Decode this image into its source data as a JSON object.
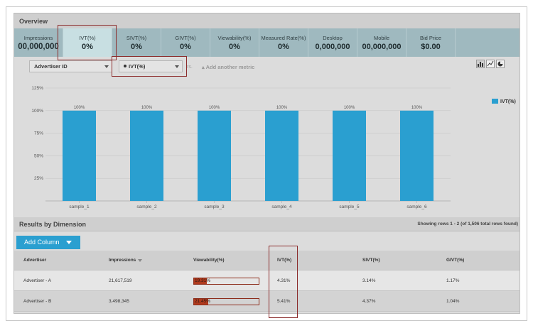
{
  "overview": {
    "title": "Overview"
  },
  "metrics": [
    {
      "label": "Impressions",
      "value": "00,000,000"
    },
    {
      "label": "IVT(%)",
      "value": "0%"
    },
    {
      "label": "SIVT(%)",
      "value": "0%"
    },
    {
      "label": "GIVT(%)",
      "value": "0%"
    },
    {
      "label": "Viewability(%)",
      "value": "0%"
    },
    {
      "label": "Measured Rate(%)",
      "value": "0%"
    },
    {
      "label": "Desktop",
      "value": "0,000,000"
    },
    {
      "label": "Mobile",
      "value": "00,000,000"
    },
    {
      "label": "Bid Price",
      "value": "$0.00"
    }
  ],
  "controls": {
    "dimension": "Advertiser ID",
    "metric": "IVT(%)",
    "add_metric": "Add another metric",
    "ghost_text": "rs.",
    "chart_type_icons": [
      "bar-chart-icon",
      "line-chart-icon",
      "pie-chart-icon"
    ]
  },
  "chart_data": {
    "type": "bar",
    "categories": [
      "sample_1",
      "sample_2",
      "sample_3",
      "sample_4",
      "sample_5",
      "sample_6"
    ],
    "series": [
      {
        "name": "IVT(%)",
        "values": [
          100,
          100,
          100,
          100,
          100,
          100
        ]
      }
    ],
    "data_labels": [
      "100%",
      "100%",
      "100%",
      "100%",
      "100%",
      "100%"
    ],
    "ylim": [
      0,
      125
    ],
    "yticks": [
      "25%",
      "50%",
      "75%",
      "100%",
      "125%"
    ],
    "ytick_values": [
      25,
      50,
      75,
      100,
      125
    ],
    "legend": "top-right",
    "grid": true,
    "color": "#2a9fd0"
  },
  "results": {
    "title": "Results by Dimension",
    "info": "Showing rows 1 - 2 (of 1,506 total rows found)",
    "add_column": "Add Column",
    "headers": [
      "Advertiser",
      "Impressions",
      "Viewability(%)",
      "IVT(%)",
      "SIVT(%)",
      "GIVT(%)"
    ],
    "rows": [
      {
        "advertiser": "Advertiser - A",
        "impressions": "21,617,519",
        "viewability": "19.31%",
        "viewability_value": 19.31,
        "ivt": "4.31%",
        "sivt": "3.14%",
        "givt": "1.17%"
      },
      {
        "advertiser": "Advertiser - B",
        "impressions": "3,498,345",
        "viewability": "21.45%",
        "viewability_value": 21.45,
        "ivt": "5.41%",
        "sivt": "4.37%",
        "givt": "1.04%"
      }
    ]
  },
  "colors": {
    "accent": "#2a9fd0",
    "metrics_bar": "#9fb9bf",
    "metric_active": "#c8dfe2",
    "highlight": "#8b2b2b",
    "viewability_bar": "#b03a1d"
  }
}
